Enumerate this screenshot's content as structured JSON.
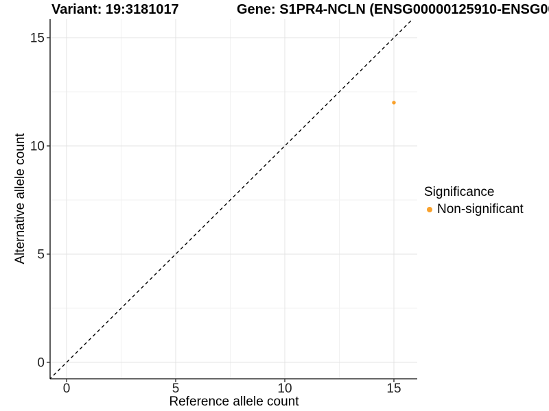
{
  "title": {
    "variant": "Variant: 19:3181017",
    "gene": "Gene: S1PR4-NCLN (ENSG00000125910-ENSG00"
  },
  "chart_data": {
    "type": "scatter",
    "xlabel": "Reference allele count",
    "ylabel": "Alternative allele count",
    "x_ticks": [
      0,
      5,
      10,
      15
    ],
    "y_ticks": [
      0,
      5,
      10,
      15
    ],
    "xlim": [
      -0.75,
      16.1
    ],
    "ylim": [
      -0.75,
      15.85
    ],
    "grid": "major and minor gridlines on white background",
    "points": [
      {
        "x": 15,
        "y": 12,
        "series": "Non-significant"
      }
    ],
    "identity_line": {
      "slope": 1,
      "intercept": 0,
      "style": "dashed",
      "color": "#000000"
    },
    "legend": {
      "title": "Significance",
      "position": "right",
      "entries": [
        {
          "label": "Non-significant",
          "color": "#F9A12B"
        }
      ]
    },
    "colors": {
      "point": "#F9A12B",
      "grid_major": "#E3E3E3",
      "grid_minor": "#F1F1F1",
      "axis": "#333333",
      "tick_text": "#222222"
    }
  }
}
